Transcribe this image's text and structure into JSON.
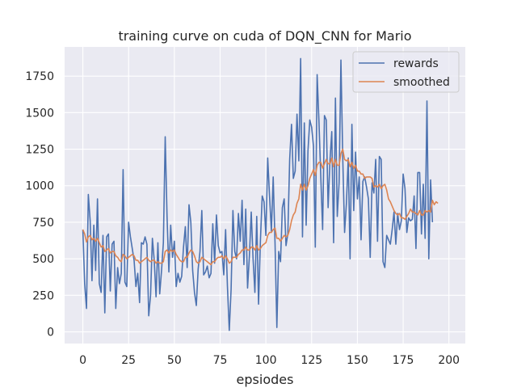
{
  "chart_data": {
    "type": "line",
    "title": "training curve on cuda of DQN_CNN for Mario",
    "xlabel": "epsiodes",
    "ylabel": "",
    "xlim": [
      -9.95,
      208.95
    ],
    "ylim": [
      -80,
      1950
    ],
    "xticks": [
      0,
      25,
      50,
      75,
      100,
      125,
      150,
      175,
      200
    ],
    "yticks": [
      0,
      250,
      500,
      750,
      1000,
      1250,
      1500,
      1750
    ],
    "grid": true,
    "legend_position": "top-right",
    "background": "#eaeaf2",
    "series": [
      {
        "name": "rewards",
        "color": "#4c72b0",
        "values": [
          700,
          330,
          160,
          940,
          760,
          350,
          730,
          420,
          910,
          330,
          270,
          660,
          130,
          650,
          670,
          280,
          600,
          620,
          160,
          440,
          330,
          400,
          1110,
          340,
          310,
          750,
          650,
          570,
          490,
          310,
          400,
          200,
          610,
          600,
          650,
          600,
          110,
          250,
          640,
          490,
          240,
          610,
          260,
          420,
          610,
          1335,
          790,
          410,
          730,
          510,
          620,
          310,
          400,
          340,
          380,
          580,
          720,
          440,
          870,
          750,
          420,
          270,
          180,
          430,
          550,
          830,
          390,
          410,
          450,
          370,
          400,
          740,
          470,
          800,
          590,
          540,
          550,
          390,
          700,
          310,
          10,
          290,
          830,
          550,
          500,
          810,
          620,
          900,
          460,
          840,
          300,
          520,
          820,
          500,
          270,
          790,
          190,
          620,
          930,
          890,
          660,
          1190,
          930,
          690,
          1060,
          610,
          30,
          550,
          480,
          850,
          910,
          590,
          670,
          1180,
          1420,
          1050,
          1100,
          1490,
          1170,
          1870,
          650,
          1430,
          730,
          1240,
          1450,
          1400,
          1270,
          580,
          1760,
          1440,
          1060,
          700,
          1480,
          1450,
          850,
          1170,
          1370,
          610,
          1600,
          790,
          1020,
          1860,
          1190,
          680,
          880,
          1190,
          500,
          1420,
          830,
          1230,
          910,
          1060,
          630,
          1030,
          1060,
          990,
          910,
          510,
          1020,
          950,
          1180,
          620,
          1200,
          1180,
          480,
          440,
          660,
          630,
          600,
          700,
          820,
          600,
          810,
          700,
          760,
          1080,
          980,
          680,
          780,
          760,
          770,
          930,
          570,
          1090,
          1090,
          670,
          1010,
          640,
          1580,
          500,
          1040,
          750
        ]
      },
      {
        "name": "smoothed",
        "color": "#dd8452",
        "values": [
          700,
          670,
          615,
          650,
          660,
          630,
          640,
          620,
          640,
          610,
          580,
          590,
          550,
          560,
          570,
          540,
          550,
          550,
          520,
          510,
          490,
          480,
          530,
          520,
          500,
          510,
          520,
          530,
          520,
          490,
          490,
          470,
          480,
          490,
          500,
          510,
          490,
          480,
          490,
          490,
          470,
          480,
          470,
          470,
          480,
          550,
          560,
          540,
          560,
          550,
          560,
          530,
          510,
          490,
          480,
          480,
          510,
          510,
          540,
          560,
          550,
          520,
          480,
          470,
          480,
          510,
          500,
          490,
          480,
          470,
          460,
          480,
          480,
          500,
          510,
          510,
          520,
          500,
          520,
          500,
          470,
          480,
          510,
          510,
          510,
          530,
          540,
          560,
          560,
          580,
          560,
          560,
          580,
          580,
          560,
          590,
          560,
          570,
          590,
          600,
          610,
          660,
          680,
          680,
          700,
          710,
          640,
          640,
          620,
          640,
          660,
          650,
          660,
          700,
          760,
          800,
          820,
          880,
          910,
          1010,
          970,
          1010,
          970,
          1000,
          1050,
          1080,
          1110,
          1070,
          1140,
          1160,
          1160,
          1120,
          1150,
          1180,
          1150,
          1150,
          1190,
          1130,
          1180,
          1140,
          1140,
          1220,
          1250,
          1180,
          1170,
          1180,
          1130,
          1160,
          1120,
          1140,
          1100,
          1100,
          1080,
          1080,
          1050,
          1060,
          1060,
          1060,
          1050,
          990,
          1000,
          990,
          1010,
          980,
          1000,
          1010,
          970,
          910,
          890,
          860,
          830,
          810,
          800,
          810,
          780,
          780,
          770,
          790,
          810,
          840,
          820,
          820,
          810,
          800,
          830,
          800,
          800,
          830,
          820,
          830,
          820,
          900,
          870,
          890,
          880
        ]
      }
    ]
  }
}
